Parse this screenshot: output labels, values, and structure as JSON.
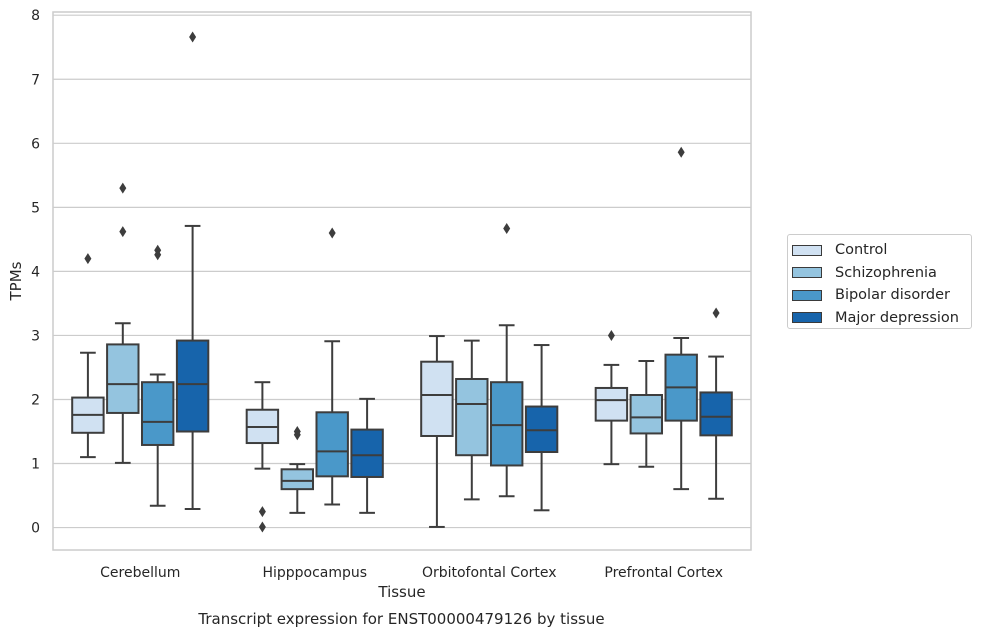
{
  "caption": "Transcript expression for ENST00000479126 by tissue",
  "chart_data": {
    "type": "box",
    "xlabel": "Tissue",
    "ylabel": "TPMs",
    "ylim": [
      -0.35,
      8.05
    ],
    "yticks": [
      0,
      1,
      2,
      3,
      4,
      5,
      6,
      7,
      8
    ],
    "grid": "horizontal",
    "legend_position": "right",
    "categories": [
      "Cerebellum",
      "Hipppocampus",
      "Orbitofontal Cortex",
      "Prefrontal Cortex"
    ],
    "series": [
      {
        "name": "Control",
        "color": "#d0e1f2",
        "boxes": [
          {
            "whislo": 1.1,
            "q1": 1.48,
            "med": 1.76,
            "q3": 2.03,
            "whishi": 2.73,
            "fliers": [
              4.2
            ]
          },
          {
            "whislo": 0.92,
            "q1": 1.32,
            "med": 1.57,
            "q3": 1.84,
            "whishi": 2.27,
            "fliers": [
              0.25,
              0.01
            ]
          },
          {
            "whislo": 0.01,
            "q1": 1.43,
            "med": 2.07,
            "q3": 2.59,
            "whishi": 2.99,
            "fliers": []
          },
          {
            "whislo": 0.99,
            "q1": 1.67,
            "med": 1.99,
            "q3": 2.18,
            "whishi": 2.54,
            "fliers": [
              3.0
            ]
          }
        ]
      },
      {
        "name": "Schizophrenia",
        "color": "#94c4df",
        "boxes": [
          {
            "whislo": 1.01,
            "q1": 1.79,
            "med": 2.24,
            "q3": 2.86,
            "whishi": 3.19,
            "fliers": [
              5.3,
              4.62
            ]
          },
          {
            "whislo": 0.23,
            "q1": 0.6,
            "med": 0.73,
            "q3": 0.91,
            "whishi": 0.99,
            "fliers": [
              1.5,
              1.45
            ]
          },
          {
            "whislo": 0.44,
            "q1": 1.13,
            "med": 1.93,
            "q3": 2.32,
            "whishi": 2.92,
            "fliers": []
          },
          {
            "whislo": 0.95,
            "q1": 1.47,
            "med": 1.72,
            "q3": 2.07,
            "whishi": 2.6,
            "fliers": []
          }
        ]
      },
      {
        "name": "Bipolar disorder",
        "color": "#4a98c9",
        "boxes": [
          {
            "whislo": 0.34,
            "q1": 1.29,
            "med": 1.65,
            "q3": 2.27,
            "whishi": 2.39,
            "fliers": [
              4.33,
              4.26
            ]
          },
          {
            "whislo": 0.36,
            "q1": 0.8,
            "med": 1.19,
            "q3": 1.8,
            "whishi": 2.91,
            "fliers": [
              4.6
            ]
          },
          {
            "whislo": 0.49,
            "q1": 0.97,
            "med": 1.6,
            "q3": 2.27,
            "whishi": 3.16,
            "fliers": [
              4.67
            ]
          },
          {
            "whislo": 0.6,
            "q1": 1.67,
            "med": 2.19,
            "q3": 2.7,
            "whishi": 2.96,
            "fliers": [
              5.86
            ]
          }
        ]
      },
      {
        "name": "Major depression",
        "color": "#1764ab",
        "boxes": [
          {
            "whislo": 0.29,
            "q1": 1.5,
            "med": 2.24,
            "q3": 2.92,
            "whishi": 4.71,
            "fliers": [
              7.66
            ]
          },
          {
            "whislo": 0.23,
            "q1": 0.79,
            "med": 1.13,
            "q3": 1.53,
            "whishi": 2.01,
            "fliers": []
          },
          {
            "whislo": 0.27,
            "q1": 1.18,
            "med": 1.52,
            "q3": 1.89,
            "whishi": 2.85,
            "fliers": []
          },
          {
            "whislo": 0.45,
            "q1": 1.44,
            "med": 1.73,
            "q3": 2.11,
            "whishi": 2.67,
            "fliers": [
              3.35
            ]
          }
        ]
      }
    ]
  }
}
